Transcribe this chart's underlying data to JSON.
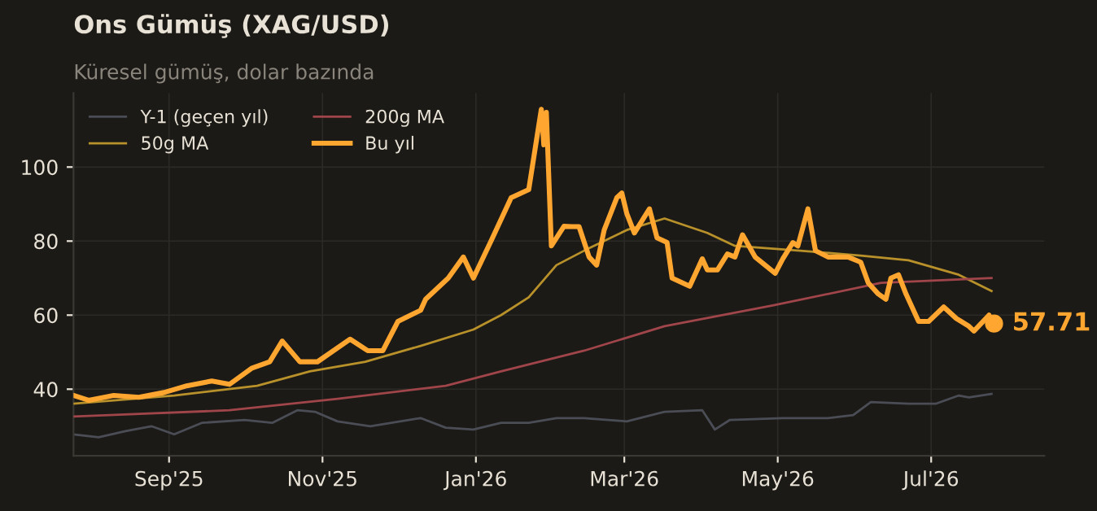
{
  "chart_data": {
    "type": "line",
    "title": "Ons Gümüş (XAG/USD)",
    "subtitle": "Küresel gümüş, dolar bazında",
    "series": [
      {
        "name": "Y-1 (geçen yıl)",
        "color": "#4a4d55",
        "x": [
          "2025-07-25",
          "2025-08-04",
          "2025-08-15",
          "2025-08-25",
          "2025-09-03",
          "2025-09-14",
          "2025-10-01",
          "2025-10-12",
          "2025-10-22",
          "2025-10-29",
          "2025-11-07",
          "2025-11-20",
          "2025-12-10",
          "2025-12-20",
          "2025-12-31",
          "2026-01-11",
          "2026-01-22",
          "2026-02-02",
          "2026-02-13",
          "2026-03-02",
          "2026-03-17",
          "2026-04-01",
          "2026-04-06",
          "2026-04-12",
          "2026-05-03",
          "2026-05-21",
          "2026-05-31",
          "2026-06-07",
          "2026-06-22",
          "2026-07-03",
          "2026-07-12",
          "2026-07-16",
          "2026-07-25"
        ],
        "values": [
          27.8,
          27,
          28.7,
          30,
          27.8,
          30.9,
          31.7,
          30.9,
          34.3,
          33.9,
          31.3,
          30,
          32.2,
          29.6,
          29.1,
          30.9,
          30.9,
          32.2,
          32.2,
          31.3,
          33.9,
          34.3,
          29.1,
          31.7,
          32.2,
          32.2,
          33,
          36.5,
          36.1,
          36.1,
          38.3,
          37.8,
          38.7
        ]
      },
      {
        "name": "50g MA",
        "color": "#b8912a",
        "x": [
          "2025-07-25",
          "2025-09-03",
          "2025-10-06",
          "2025-10-27",
          "2025-11-18",
          "2025-12-10",
          "2025-12-31",
          "2026-01-11",
          "2026-01-22",
          "2026-02-02",
          "2026-02-13",
          "2026-03-02",
          "2026-03-17",
          "2026-04-03",
          "2026-04-14",
          "2026-05-10",
          "2026-06-03",
          "2026-06-22",
          "2026-07-12",
          "2026-07-25"
        ],
        "values": [
          36.1,
          38.3,
          40.9,
          44.8,
          47.4,
          51.7,
          56.1,
          60,
          64.8,
          73.5,
          77.4,
          83,
          86.1,
          82.2,
          78.7,
          77.4,
          76.1,
          74.8,
          70.9,
          66.5
        ]
      },
      {
        "name": "200g MA",
        "color": "#a0454a",
        "x": [
          "2025-07-25",
          "2025-09-25",
          "2025-11-07",
          "2025-12-20",
          "2026-01-11",
          "2026-02-13",
          "2026-03-17",
          "2026-04-29",
          "2026-06-11",
          "2026-07-25"
        ],
        "values": [
          32.6,
          34.3,
          37.4,
          40.9,
          44.8,
          50.4,
          57,
          62.6,
          68.7,
          70
        ]
      },
      {
        "name": "Bu yıl",
        "color": "#ffa630",
        "x": [
          "2025-07-25",
          "2025-07-31",
          "2025-08-10",
          "2025-08-20",
          "2025-08-30",
          "2025-09-08",
          "2025-09-18",
          "2025-09-25",
          "2025-10-04",
          "2025-10-11",
          "2025-10-16",
          "2025-10-23",
          "2025-10-30",
          "2025-11-12",
          "2025-11-19",
          "2025-11-25",
          "2025-12-01",
          "2025-12-10",
          "2025-12-12",
          "2025-12-21",
          "2025-12-27",
          "2025-12-31",
          "2026-01-07",
          "2026-01-15",
          "2026-01-22",
          "2026-01-27",
          "2026-01-28",
          "2026-01-29",
          "2026-01-31",
          "2026-02-05",
          "2026-02-08",
          "2026-02-11",
          "2026-02-15",
          "2026-02-18",
          "2026-02-21",
          "2026-02-26",
          "2026-02-28",
          "2026-03-02",
          "2026-03-05",
          "2026-03-11",
          "2026-03-14",
          "2026-03-18",
          "2026-03-20",
          "2026-03-27",
          "2026-04-01",
          "2026-04-03",
          "2026-04-07",
          "2026-04-11",
          "2026-04-14",
          "2026-04-17",
          "2026-04-22",
          "2026-04-30",
          "2026-05-03",
          "2026-05-07",
          "2026-05-09",
          "2026-05-13",
          "2026-05-16",
          "2026-05-21",
          "2026-05-29",
          "2026-06-03",
          "2026-06-06",
          "2026-06-10",
          "2026-06-13",
          "2026-06-15",
          "2026-06-18",
          "2026-06-21",
          "2026-06-26",
          "2026-06-30",
          "2026-07-06",
          "2026-07-11",
          "2026-07-16",
          "2026-07-18",
          "2026-07-24",
          "2026-07-26"
        ],
        "values": [
          38.3,
          37,
          38.3,
          37.8,
          39.1,
          40.9,
          42.2,
          41.3,
          45.7,
          47.4,
          53,
          47.4,
          47.4,
          53.5,
          50.4,
          50.4,
          58.3,
          61.3,
          64.3,
          70,
          75.7,
          70,
          80,
          91.7,
          93.9,
          115.6,
          106,
          114.8,
          78.7,
          84,
          83.9,
          83.9,
          75.7,
          73.5,
          83,
          91.7,
          93,
          87.4,
          82.2,
          88.7,
          80.9,
          79.6,
          70,
          67.8,
          75.2,
          72.2,
          72.2,
          76.5,
          75.7,
          81.7,
          75.7,
          71.3,
          75.2,
          79.6,
          78.7,
          88.7,
          77.4,
          75.7,
          75.7,
          74.3,
          68.7,
          65.7,
          64.3,
          70,
          70.9,
          65.7,
          58.3,
          58.3,
          62.2,
          59.1,
          57,
          55.7,
          60,
          57.71
        ]
      }
    ],
    "annotations": [
      {
        "text": "57.71",
        "x": "2026-07-26",
        "y": 57.71
      }
    ],
    "xlim": [
      "2025-07-25",
      "2026-08-15"
    ],
    "xticks": [
      {
        "value": "2025-09-01",
        "label": "Sep'25"
      },
      {
        "value": "2025-11-01",
        "label": "Nov'25"
      },
      {
        "value": "2026-01-01",
        "label": "Jan'26"
      },
      {
        "value": "2026-03-01",
        "label": "Mar'26"
      },
      {
        "value": "2026-05-01",
        "label": "May'26"
      },
      {
        "value": "2026-07-01",
        "label": "Jul'26"
      }
    ],
    "ylim": [
      22,
      120
    ],
    "yticks": [
      40,
      60,
      80,
      100
    ],
    "grid": true,
    "legend": "top left",
    "marker": "none",
    "line_style": "solid"
  }
}
